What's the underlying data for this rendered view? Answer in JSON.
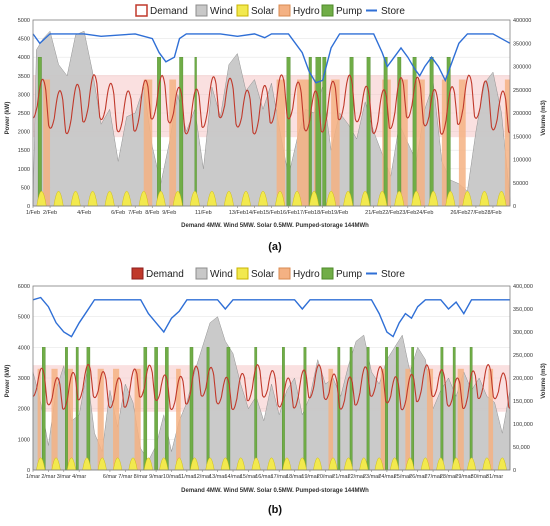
{
  "colors": {
    "demand": "#c0392b",
    "demand_shade": "#f6c6c6",
    "wind": "#c8c8c8",
    "wind_line": "#8c8c8c",
    "solar": "#f2e94e",
    "hydro": "#f4b183",
    "pump": "#70ad47",
    "store": "#2f6fd6",
    "grid": "#e6e6e6",
    "axis": "#808080"
  },
  "chart_data": [
    {
      "type": "area",
      "panel_label": "(a)",
      "subtitle": "Demand 4MW. Wind 5MW. Solar 0.5MW. Pumped-storage 144MWh",
      "legend": [
        "Demand",
        "Wind",
        "Solar",
        "Hydro",
        "Pump",
        "Store"
      ],
      "ylabel_left": "Power (kW)",
      "ylabel_right": "Volume (m3)",
      "ylim_left": [
        0,
        5000
      ],
      "yticks_left": [
        "0",
        "500",
        "1000",
        "1500",
        "2000",
        "2500",
        "3000",
        "3500",
        "4000",
        "4500",
        "5000"
      ],
      "ylim_right": [
        0,
        400000
      ],
      "yticks_right": [
        "0",
        "50000",
        "100000",
        "150000",
        "200000",
        "250000",
        "300000",
        "350000",
        "400000"
      ],
      "x_range": [
        1,
        29
      ],
      "xtick_labels": [
        "1/Feb",
        "2/Feb",
        "4/Feb",
        "6/Feb",
        "7/Feb",
        "8/Feb",
        "9/Feb",
        "11/Feb",
        "13/Feb",
        "14/Feb",
        "15/Feb",
        "16/Feb",
        "17/Feb",
        "18/Feb",
        "19/Feb",
        "21/Feb",
        "22/Feb",
        "23/Feb",
        "24/Feb",
        "26/Feb",
        "27/Feb",
        "28/Feb"
      ],
      "xtick_days": [
        1,
        2,
        4,
        6,
        7,
        8,
        9,
        11,
        13,
        14,
        15,
        16,
        17,
        18,
        19,
        21,
        22,
        23,
        24,
        26,
        27,
        28
      ],
      "demand": {
        "base": 2500,
        "amp_hi": 900,
        "amp_lo": 500
      },
      "wind": [
        [
          1,
          0
        ],
        [
          1.2,
          4200
        ],
        [
          1.6,
          4500
        ],
        [
          2,
          4700
        ],
        [
          2.5,
          3800
        ],
        [
          3,
          3500
        ],
        [
          3.5,
          4600
        ],
        [
          4,
          4700
        ],
        [
          4.5,
          3600
        ],
        [
          5,
          2200
        ],
        [
          5.5,
          2600
        ],
        [
          6,
          1200
        ],
        [
          6.5,
          2400
        ],
        [
          7,
          2500
        ],
        [
          7.5,
          3200
        ],
        [
          8,
          1600
        ],
        [
          8.5,
          600
        ],
        [
          9,
          1700
        ],
        [
          9.5,
          3000
        ],
        [
          10,
          2000
        ],
        [
          10.5,
          2600
        ],
        [
          11,
          1000
        ],
        [
          11.5,
          3200
        ],
        [
          12,
          2400
        ],
        [
          12.5,
          3800
        ],
        [
          13,
          4100
        ],
        [
          13.5,
          3100
        ],
        [
          14,
          3400
        ],
        [
          14.5,
          2600
        ],
        [
          15,
          3300
        ],
        [
          15.5,
          2000
        ],
        [
          16,
          800
        ],
        [
          16.5,
          1800
        ],
        [
          17,
          2600
        ],
        [
          17.5,
          2500
        ],
        [
          18,
          3200
        ],
        [
          18.5,
          1500
        ],
        [
          19,
          2500
        ],
        [
          19.5,
          2200
        ],
        [
          20,
          1800
        ],
        [
          20.5,
          2800
        ],
        [
          21,
          2000
        ],
        [
          21.5,
          1400
        ],
        [
          22,
          800
        ],
        [
          22.5,
          2200
        ],
        [
          23,
          1700
        ],
        [
          23.5,
          1200
        ],
        [
          24,
          2600
        ],
        [
          24.5,
          3300
        ],
        [
          25,
          1200
        ],
        [
          25.5,
          700
        ],
        [
          26,
          600
        ],
        [
          26.5,
          400
        ],
        [
          27,
          2000
        ],
        [
          27.5,
          3300
        ],
        [
          28,
          3600
        ],
        [
          28.5,
          2500
        ],
        [
          29,
          200
        ]
      ],
      "hydro": [
        [
          1.6,
          2.0
        ],
        [
          7.5,
          8.0
        ],
        [
          9.0,
          9.4
        ],
        [
          15.3,
          15.8
        ],
        [
          16.5,
          17.3
        ],
        [
          17.5,
          17.8
        ],
        [
          18.5,
          19.0
        ],
        [
          21.5,
          22.0
        ],
        [
          22.5,
          23.0
        ],
        [
          23.5,
          24.0
        ],
        [
          25.0,
          25.4
        ],
        [
          26.0,
          26.4
        ],
        [
          28.7,
          29.0
        ]
      ],
      "pump": [
        [
          1.3,
          1.5
        ],
        [
          8.3,
          8.5
        ],
        [
          9.6,
          9.8
        ],
        [
          10.5,
          10.6
        ],
        [
          15.9,
          16.1
        ],
        [
          17.2,
          17.35
        ],
        [
          17.6,
          17.9
        ],
        [
          18.0,
          18.2
        ],
        [
          19.6,
          19.8
        ],
        [
          20.6,
          20.8
        ],
        [
          21.6,
          21.8
        ],
        [
          22.4,
          22.6
        ],
        [
          23.3,
          23.5
        ],
        [
          24.3,
          24.5
        ],
        [
          25.3,
          25.5
        ]
      ],
      "store": [
        [
          1,
          370000
        ],
        [
          1.4,
          350000
        ],
        [
          2,
          370000
        ],
        [
          3,
          370000
        ],
        [
          4,
          370000
        ],
        [
          5,
          365000
        ],
        [
          7,
          370000
        ],
        [
          8,
          360000
        ],
        [
          8.4,
          330000
        ],
        [
          8.8,
          310000
        ],
        [
          9.3,
          320000
        ],
        [
          9.6,
          360000
        ],
        [
          10,
          370000
        ],
        [
          12,
          370000
        ],
        [
          13,
          365000
        ],
        [
          14,
          370000
        ],
        [
          14.6,
          362000
        ],
        [
          15,
          370000
        ],
        [
          16,
          370000
        ],
        [
          16.8,
          330000
        ],
        [
          17.2,
          290000
        ],
        [
          17.6,
          265000
        ],
        [
          18.0,
          270000
        ],
        [
          18.5,
          340000
        ],
        [
          19,
          370000
        ],
        [
          21,
          370000
        ],
        [
          21.5,
          330000
        ],
        [
          21.8,
          300000
        ],
        [
          22.2,
          320000
        ],
        [
          22.6,
          340000
        ],
        [
          23.0,
          320000
        ],
        [
          23.4,
          295000
        ],
        [
          23.7,
          280000
        ],
        [
          24.0,
          300000
        ],
        [
          24.4,
          320000
        ],
        [
          24.8,
          300000
        ],
        [
          25.2,
          270000
        ],
        [
          25.6,
          310000
        ],
        [
          26,
          350000
        ],
        [
          26.5,
          370000
        ],
        [
          28,
          370000
        ],
        [
          29,
          350000
        ]
      ]
    },
    {
      "type": "area",
      "panel_label": "(b)",
      "subtitle": "Demand 4MW. Wind 5MW. Solar 0.5MW. Pumped-storage 144MWh",
      "legend": [
        "Demand",
        "Wind",
        "Solar",
        "Hydro",
        "Pump",
        "Store"
      ],
      "ylabel_left": "Power (kW)",
      "ylabel_right": "Volume (m3)",
      "ylim_left": [
        0,
        6000
      ],
      "yticks_left": [
        "0",
        "1000",
        "2000",
        "3000",
        "4000",
        "5000",
        "6000"
      ],
      "ylim_right": [
        0,
        400000
      ],
      "yticks_right": [
        "0",
        "50,000",
        "100,000",
        "150,000",
        "200,000",
        "250,000",
        "300,000",
        "350,000",
        "400,000"
      ],
      "x_range": [
        1,
        32
      ],
      "xtick_labels": [
        "1/mar",
        "2/mar",
        "3/mar",
        "4/mar",
        "6/mar",
        "7/mar",
        "8/mar",
        "9/mar",
        "10/mar",
        "11/mar",
        "12/mar",
        "13/mar",
        "14/mar",
        "15/mar",
        "16/mar",
        "17/mar",
        "18/mar",
        "19/mar",
        "20/mar",
        "21/mar",
        "22/mar",
        "23/mar",
        "24/mar",
        "25/mar",
        "26/mar",
        "27/mar",
        "28/mar",
        "29/mar",
        "30/mar",
        "31/mar"
      ],
      "xtick_days": [
        1,
        2,
        3,
        4,
        6,
        7,
        8,
        9,
        10,
        11,
        12,
        13,
        14,
        15,
        16,
        17,
        18,
        19,
        20,
        21,
        22,
        23,
        24,
        25,
        26,
        27,
        28,
        29,
        30,
        31
      ],
      "demand": {
        "base": 2500,
        "amp_hi": 800,
        "amp_lo": 450
      },
      "wind": [
        [
          1,
          3200
        ],
        [
          1.5,
          2200
        ],
        [
          2,
          800
        ],
        [
          2.5,
          2600
        ],
        [
          3,
          3400
        ],
        [
          3.5,
          1600
        ],
        [
          4,
          1800
        ],
        [
          4.5,
          3200
        ],
        [
          5,
          1200
        ],
        [
          5.5,
          600
        ],
        [
          6,
          2600
        ],
        [
          6.5,
          1400
        ],
        [
          7,
          2800
        ],
        [
          7.5,
          2200
        ],
        [
          8,
          700
        ],
        [
          8.5,
          300
        ],
        [
          9,
          800
        ],
        [
          9.5,
          1800
        ],
        [
          10,
          600
        ],
        [
          10.5,
          1600
        ],
        [
          11,
          2200
        ],
        [
          11.5,
          3200
        ],
        [
          12,
          4000
        ],
        [
          12.5,
          4800
        ],
        [
          13,
          5000
        ],
        [
          13.5,
          4200
        ],
        [
          14,
          3800
        ],
        [
          14.5,
          2800
        ],
        [
          15,
          2000
        ],
        [
          15.5,
          2400
        ],
        [
          16,
          1600
        ],
        [
          16.5,
          2800
        ],
        [
          17,
          1800
        ],
        [
          17.5,
          2600
        ],
        [
          18,
          3000
        ],
        [
          18.5,
          1800
        ],
        [
          19,
          2400
        ],
        [
          19.5,
          3600
        ],
        [
          20,
          2800
        ],
        [
          20.5,
          3000
        ],
        [
          21,
          2400
        ],
        [
          21.5,
          3400
        ],
        [
          22,
          4200
        ],
        [
          22.5,
          4400
        ],
        [
          23,
          3200
        ],
        [
          23.5,
          2800
        ],
        [
          24,
          3600
        ],
        [
          24.5,
          4000
        ],
        [
          25,
          4400
        ],
        [
          25.5,
          3200
        ],
        [
          26,
          4000
        ],
        [
          26.5,
          3600
        ],
        [
          27,
          2000
        ],
        [
          27.5,
          2600
        ],
        [
          28,
          3000
        ],
        [
          28.5,
          2400
        ],
        [
          29,
          3200
        ],
        [
          29.5,
          2600
        ],
        [
          30,
          3000
        ],
        [
          30.5,
          2400
        ],
        [
          31,
          2200
        ],
        [
          31.5,
          1200
        ],
        [
          32,
          2600
        ]
      ],
      "hydro": [
        [
          1.3,
          1.5
        ],
        [
          2.2,
          2.6
        ],
        [
          3.2,
          3.6
        ],
        [
          5.2,
          5.6
        ],
        [
          6.2,
          6.6
        ],
        [
          7.6,
          8.0
        ],
        [
          10.3,
          10.6
        ],
        [
          20.2,
          20.5
        ],
        [
          23.6,
          24.0
        ],
        [
          25.2,
          25.5
        ],
        [
          26.6,
          27.0
        ],
        [
          28.6,
          29.0
        ],
        [
          30.6,
          30.9
        ]
      ],
      "pump": [
        [
          1.6,
          1.8
        ],
        [
          3.1,
          3.25
        ],
        [
          3.8,
          3.95
        ],
        [
          4.5,
          4.7
        ],
        [
          8.2,
          8.4
        ],
        [
          8.9,
          9.1
        ],
        [
          9.6,
          9.8
        ],
        [
          11.2,
          11.4
        ],
        [
          12.3,
          12.45
        ],
        [
          13.6,
          13.8
        ],
        [
          15.4,
          15.55
        ],
        [
          17.2,
          17.35
        ],
        [
          18.6,
          18.75
        ],
        [
          20.8,
          20.95
        ],
        [
          21.6,
          21.75
        ],
        [
          22.7,
          22.85
        ],
        [
          23.9,
          24.05
        ],
        [
          24.6,
          24.75
        ],
        [
          25.6,
          25.75
        ],
        [
          27.5,
          27.65
        ],
        [
          28.3,
          28.45
        ],
        [
          29.4,
          29.55
        ]
      ],
      "store": [
        [
          1,
          370000
        ],
        [
          1.5,
          375000
        ],
        [
          2,
          355000
        ],
        [
          2.5,
          320000
        ],
        [
          3,
          300000
        ],
        [
          3.5,
          290000
        ],
        [
          4,
          320000
        ],
        [
          4.5,
          345000
        ],
        [
          5,
          370000
        ],
        [
          8,
          370000
        ],
        [
          8.5,
          340000
        ],
        [
          9,
          320000
        ],
        [
          9.5,
          300000
        ],
        [
          10,
          330000
        ],
        [
          10.5,
          345000
        ],
        [
          11,
          370000
        ],
        [
          13,
          370000
        ],
        [
          13.5,
          350000
        ],
        [
          14,
          370000
        ],
        [
          18,
          370000
        ],
        [
          18.5,
          350000
        ],
        [
          19,
          370000
        ],
        [
          23,
          370000
        ],
        [
          23.5,
          340000
        ],
        [
          24,
          300000
        ],
        [
          24.4,
          290000
        ],
        [
          24.8,
          320000
        ],
        [
          25.2,
          340000
        ],
        [
          25.6,
          330000
        ],
        [
          26,
          355000
        ],
        [
          26.5,
          370000
        ],
        [
          27.5,
          370000
        ],
        [
          28,
          350000
        ],
        [
          28.5,
          365000
        ],
        [
          29,
          340000
        ],
        [
          29.5,
          370000
        ],
        [
          32,
          370000
        ]
      ]
    }
  ]
}
